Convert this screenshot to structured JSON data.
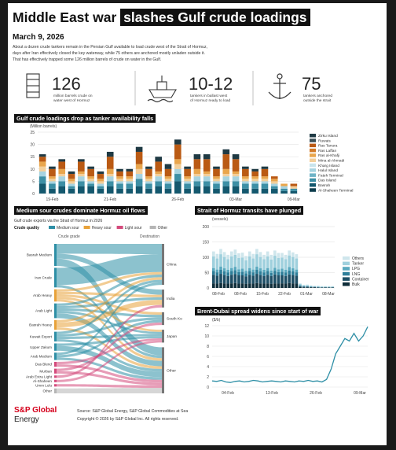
{
  "header": {
    "title_plain": "Middle East war",
    "title_highlight": "slashes Gulf crude loadings",
    "date": "March 9, 2026",
    "intro": [
      "About a dozen crude tankers remain in the Persian Gulf available to load crude west of the Strait of Hormuz,",
      "days after Iran effectively closed the key waterway, while 75 others are anchored mostly unladen outside it.",
      "That has effectively trapped some 126 million barrels of crude on water in the Gulf."
    ]
  },
  "stats": [
    {
      "icon": "barrels-icon",
      "value": "126",
      "desc": [
        "million barrels crude on",
        "water west of Hormuz"
      ]
    },
    {
      "icon": "tanker-icon",
      "value": "10-12",
      "desc": [
        "tankers in ballast west",
        "of Hormuz ready to load"
      ]
    },
    {
      "icon": "anchor-icon",
      "value": "75",
      "desc": [
        "tankers anchored",
        "outside the strait"
      ]
    }
  ],
  "footer": {
    "brand_line1": "S&P Global",
    "brand_line2": "Energy",
    "source": "Source: S&P Global Energy, S&P Global Commodities at Sea",
    "copyright": "Copyright © 2026 by S&P Global Inc. All rights reserved."
  },
  "chart_data": [
    {
      "type": "bar",
      "stacked": true,
      "title": "Gulf crude loadings drop as tanker availability falls",
      "ylabel": "(Million barrels)",
      "ylim": [
        0,
        25
      ],
      "yticks": [
        0,
        5,
        10,
        15,
        20,
        25
      ],
      "xtick_labels": [
        "19-Feb",
        "21-Feb",
        "26-Feb",
        "03-Mar",
        "09-Mar"
      ],
      "xtick_index": [
        1,
        7,
        14,
        20,
        26
      ],
      "legend_position": "right",
      "colors": {
        "Other": "#1f3a44",
        "Red": "#ba5a14",
        "Tan": "#e9a64d",
        "LightTan": "#f3cf9a",
        "LightBlue": "#a7d3e0",
        "Teal": "#3d8fa5",
        "DarkTeal": "#14586e"
      },
      "legend": [
        {
          "name": "Zirku Island",
          "color": "#1f3a44"
        },
        {
          "name": "Ruwais",
          "color": "#3b4f56"
        },
        {
          "name": "Ras Tanura",
          "color": "#ba5a14"
        },
        {
          "name": "Ras Laffan",
          "color": "#d27a28"
        },
        {
          "name": "Ras al-Khafji",
          "color": "#e9a64d"
        },
        {
          "name": "Mina al-Ahmadi",
          "color": "#f3cf9a"
        },
        {
          "name": "Kharg Island",
          "color": "#c9e4ec"
        },
        {
          "name": "Halul Island",
          "color": "#a7d3e0"
        },
        {
          "name": "Fateh Terminal",
          "color": "#6fb3c7"
        },
        {
          "name": "Das Island",
          "color": "#3d8fa5"
        },
        {
          "name": "Basrah",
          "color": "#14586e"
        },
        {
          "name": "Al-Shaheen Terminal",
          "color": "#0d3d4d"
        }
      ],
      "stack_order": [
        "Basrah",
        "Das Island",
        "Halul Island",
        "Mina al-Ahmadi",
        "Ras al-Khafji",
        "Ras Tanura",
        "Zirku Island"
      ],
      "bars": [
        [
          4,
          3,
          2,
          2,
          2,
          2,
          1
        ],
        [
          2,
          2,
          1,
          1,
          1,
          3,
          1
        ],
        [
          3,
          2,
          2,
          1,
          2,
          3,
          1
        ],
        [
          2,
          1,
          1,
          1,
          1,
          2,
          1
        ],
        [
          3,
          2,
          2,
          1,
          1,
          4,
          1
        ],
        [
          3,
          1,
          1,
          1,
          1,
          3,
          1
        ],
        [
          2,
          1,
          1,
          1,
          1,
          2,
          1
        ],
        [
          3,
          2,
          2,
          1,
          2,
          5,
          2
        ],
        [
          2,
          2,
          1,
          1,
          1,
          2,
          1
        ],
        [
          2,
          2,
          1,
          1,
          1,
          2,
          1
        ],
        [
          3,
          3,
          2,
          2,
          2,
          5,
          2
        ],
        [
          2,
          2,
          1,
          1,
          1,
          3,
          1
        ],
        [
          3,
          2,
          2,
          1,
          1,
          4,
          2
        ],
        [
          2,
          2,
          1,
          1,
          1,
          3,
          2
        ],
        [
          5,
          3,
          2,
          2,
          2,
          6,
          2
        ],
        [
          2,
          2,
          1,
          1,
          1,
          3,
          1
        ],
        [
          3,
          2,
          2,
          1,
          2,
          4,
          2
        ],
        [
          3,
          2,
          2,
          1,
          1,
          5,
          2
        ],
        [
          2,
          2,
          1,
          1,
          1,
          3,
          1
        ],
        [
          3,
          2,
          2,
          1,
          2,
          6,
          2
        ],
        [
          3,
          2,
          2,
          1,
          1,
          5,
          2
        ],
        [
          2,
          2,
          1,
          1,
          1,
          3,
          1
        ],
        [
          2,
          2,
          1,
          1,
          1,
          2,
          1
        ],
        [
          2,
          2,
          1,
          1,
          1,
          3,
          1
        ],
        [
          2,
          1,
          1,
          1,
          1,
          1,
          0
        ],
        [
          1,
          1,
          1,
          0,
          1,
          0,
          0
        ],
        [
          1,
          1,
          0,
          1,
          0,
          1,
          0
        ]
      ]
    },
    {
      "type": "sankey",
      "title": "Medium sour crudes dominate Hormuz oil flows",
      "subtitle": "Gulf crude exports via the Strait of Hormuz in 2026",
      "legend_label": "Crude quality",
      "qualities": [
        {
          "name": "Medium sour",
          "color": "#2e8fa6"
        },
        {
          "name": "Heavy sour",
          "color": "#e8a23a"
        },
        {
          "name": "Light sour",
          "color": "#d44b7c"
        },
        {
          "name": "Other",
          "color": "#b5b5b5"
        }
      ],
      "left_header": "Crude grade",
      "right_header": "Destination",
      "grades": [
        {
          "name": "Basrah Medium",
          "quality": "Medium sour",
          "weight": 9
        },
        {
          "name": "Iran Crude",
          "quality": "Medium sour",
          "weight": 8
        },
        {
          "name": "Arab Heavy",
          "quality": "Heavy sour",
          "weight": 5
        },
        {
          "name": "Arab Light",
          "quality": "Medium sour",
          "weight": 6
        },
        {
          "name": "Basrah Heavy",
          "quality": "Heavy sour",
          "weight": 4
        },
        {
          "name": "Kuwait Export",
          "quality": "Medium sour",
          "weight": 4
        },
        {
          "name": "Upper Zakum",
          "quality": "Medium sour",
          "weight": 3
        },
        {
          "name": "Arab Medium",
          "quality": "Medium sour",
          "weight": 3
        },
        {
          "name": "Das Blend",
          "quality": "Light sour",
          "weight": 2
        },
        {
          "name": "Murban",
          "quality": "Light sour",
          "weight": 2
        },
        {
          "name": "Arab Extra Light",
          "quality": "Light sour",
          "weight": 1
        },
        {
          "name": "Al-Shaheen",
          "quality": "Light sour",
          "weight": 1
        },
        {
          "name": "Umm Lulu",
          "quality": "Light sour",
          "weight": 1
        },
        {
          "name": "Other",
          "quality": "Other",
          "weight": 2
        }
      ],
      "destinations": [
        {
          "name": "China",
          "weight": 16
        },
        {
          "name": "India",
          "weight": 7
        },
        {
          "name": "South Korea",
          "weight": 5
        },
        {
          "name": "Japan",
          "weight": 5
        },
        {
          "name": "Other",
          "weight": 18
        }
      ],
      "links": [
        [
          0,
          0,
          4
        ],
        [
          0,
          1,
          2
        ],
        [
          0,
          4,
          3
        ],
        [
          1,
          0,
          7
        ],
        [
          1,
          4,
          1
        ],
        [
          2,
          0,
          1
        ],
        [
          2,
          1,
          1
        ],
        [
          2,
          2,
          1
        ],
        [
          2,
          3,
          1
        ],
        [
          2,
          4,
          1
        ],
        [
          3,
          0,
          1
        ],
        [
          3,
          1,
          1
        ],
        [
          3,
          2,
          1
        ],
        [
          3,
          3,
          1
        ],
        [
          3,
          4,
          2
        ],
        [
          4,
          0,
          1
        ],
        [
          4,
          1,
          2
        ],
        [
          4,
          4,
          1
        ],
        [
          5,
          0,
          1
        ],
        [
          5,
          2,
          1
        ],
        [
          5,
          3,
          1
        ],
        [
          5,
          4,
          1
        ],
        [
          6,
          3,
          1
        ],
        [
          6,
          4,
          2
        ],
        [
          7,
          0,
          1
        ],
        [
          7,
          2,
          1
        ],
        [
          7,
          4,
          1
        ],
        [
          8,
          3,
          1
        ],
        [
          8,
          4,
          1
        ],
        [
          9,
          2,
          1
        ],
        [
          9,
          4,
          1
        ],
        [
          10,
          1,
          1
        ],
        [
          11,
          3,
          1
        ],
        [
          12,
          4,
          1
        ],
        [
          13,
          2,
          0
        ],
        [
          13,
          4,
          2
        ]
      ]
    },
    {
      "type": "bar",
      "stacked": true,
      "title": "Strait of Hormuz transits have plunged",
      "ylabel": "(vessels)",
      "ylim": [
        0,
        200
      ],
      "yticks": [
        0,
        50,
        100,
        150,
        200
      ],
      "xtick_labels": [
        "08-Feb",
        "08-Feb",
        "15-Feb",
        "22-Feb",
        "01-Mar",
        "08-Mar"
      ],
      "series": [
        {
          "name": "Bulk",
          "color": "#0f2d3a",
          "values": [
            15,
            14,
            16,
            15,
            14,
            15,
            16,
            14,
            15,
            13,
            15,
            14,
            16,
            15,
            14,
            15,
            13,
            15,
            14,
            15,
            14,
            16,
            15,
            14,
            3,
            2,
            2,
            2,
            2,
            1,
            1,
            1,
            1,
            1
          ]
        },
        {
          "name": "Container",
          "color": "#1f4f66",
          "values": [
            28,
            26,
            30,
            27,
            25,
            28,
            29,
            27,
            26,
            25,
            28,
            26,
            30,
            27,
            25,
            28,
            26,
            29,
            27,
            26,
            25,
            28,
            27,
            26,
            3,
            2,
            2,
            1,
            1,
            1,
            1,
            1,
            1,
            1
          ]
        },
        {
          "name": "LNG",
          "color": "#2e7f9a",
          "values": [
            12,
            11,
            13,
            12,
            11,
            12,
            13,
            11,
            12,
            10,
            12,
            11,
            13,
            12,
            11,
            12,
            10,
            12,
            11,
            12,
            11,
            13,
            12,
            11,
            2,
            1,
            1,
            1,
            1,
            1,
            0,
            1,
            0,
            1
          ]
        },
        {
          "name": "LPG",
          "color": "#5aa9bf",
          "values": [
            10,
            9,
            11,
            10,
            9,
            10,
            11,
            9,
            10,
            8,
            10,
            9,
            11,
            10,
            9,
            10,
            8,
            10,
            9,
            10,
            9,
            11,
            10,
            9,
            1,
            1,
            1,
            1,
            0,
            1,
            1,
            0,
            1,
            0
          ]
        },
        {
          "name": "Tanker",
          "color": "#9fd0dd",
          "values": [
            38,
            36,
            40,
            37,
            35,
            38,
            39,
            37,
            36,
            34,
            38,
            36,
            40,
            37,
            35,
            38,
            36,
            39,
            37,
            36,
            35,
            38,
            37,
            36,
            4,
            3,
            3,
            2,
            2,
            2,
            2,
            2,
            2,
            2
          ]
        },
        {
          "name": "Others",
          "color": "#cfe6ec",
          "values": [
            16,
            15,
            17,
            16,
            14,
            16,
            17,
            15,
            16,
            14,
            16,
            15,
            17,
            16,
            14,
            16,
            15,
            17,
            16,
            15,
            14,
            16,
            15,
            14,
            2,
            1,
            2,
            1,
            1,
            1,
            1,
            1,
            1,
            1
          ]
        }
      ]
    },
    {
      "type": "line",
      "title": "Brent-Dubai spread widens since start of war",
      "ylabel": "($/b)",
      "ylim": [
        0,
        12
      ],
      "yticks": [
        0,
        2,
        4,
        6,
        8,
        10,
        12
      ],
      "xtick_labels": [
        "04-Feb",
        "13-Feb",
        "26-Feb",
        "09-Mar"
      ],
      "color": "#2e8fa6",
      "values": [
        1.2,
        1.1,
        1.3,
        1.0,
        0.9,
        1.1,
        1.2,
        1.0,
        1.1,
        1.3,
        1.2,
        1.0,
        1.1,
        1.2,
        1.1,
        1.0,
        1.2,
        1.1,
        1.0,
        1.2,
        1.1,
        1.3,
        1.1,
        1.2,
        1.0,
        1.5,
        3.5,
        6.5,
        8.0,
        9.5,
        9.0,
        10.5,
        9.0,
        10.0,
        11.8
      ]
    }
  ]
}
